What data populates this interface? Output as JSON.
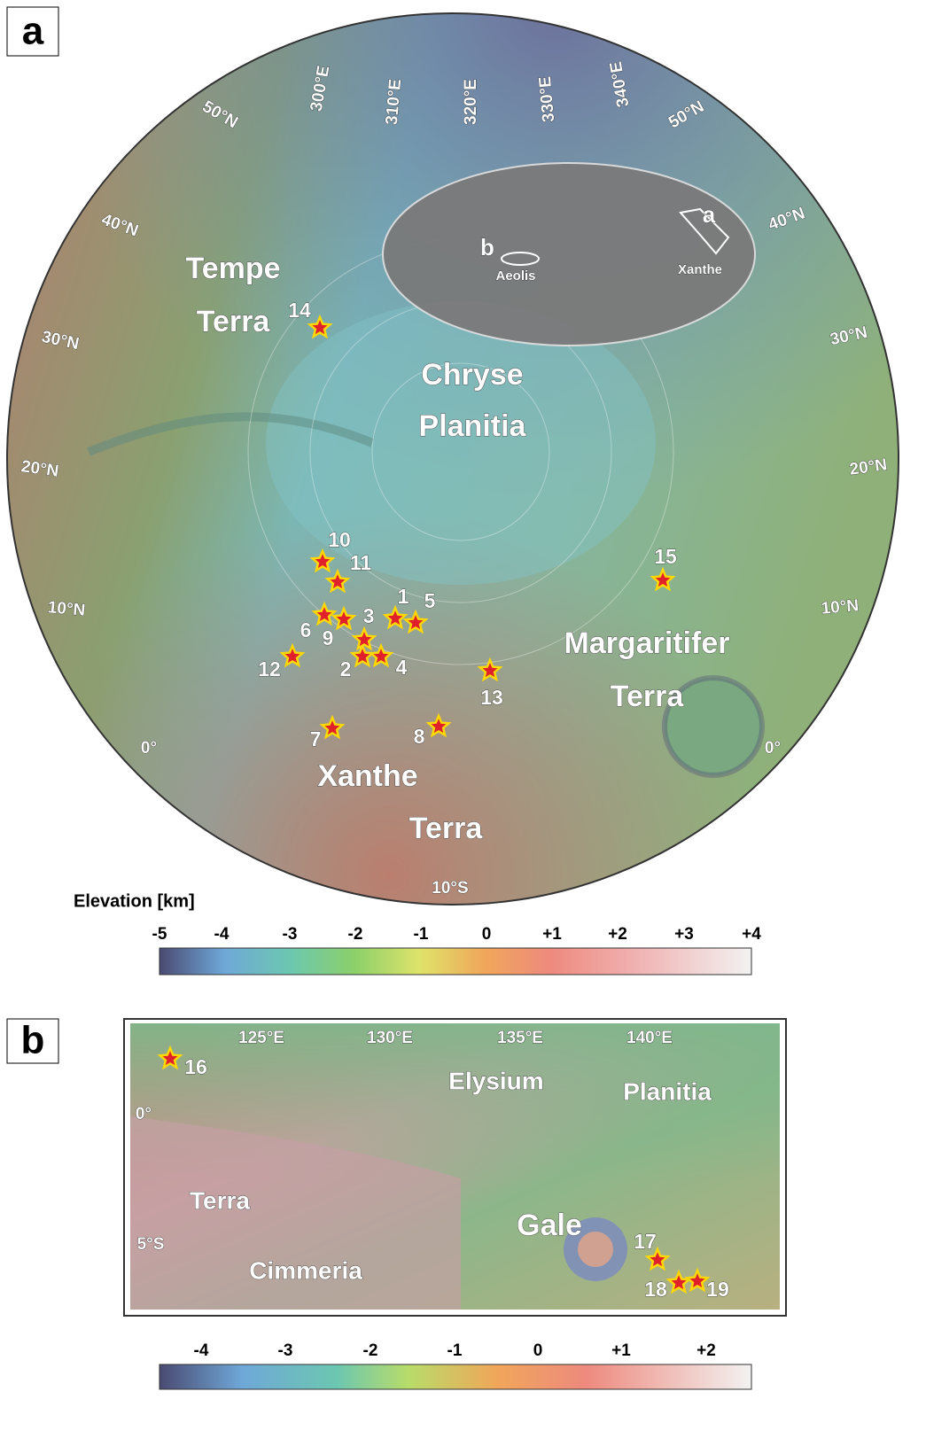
{
  "panel_a": {
    "label": "a",
    "lat_left": [
      "50°N",
      "40°N",
      "30°N",
      "20°N",
      "10°N",
      "0°"
    ],
    "lat_right": [
      "50°N",
      "40°N",
      "30°N",
      "20°N",
      "10°N",
      "0°"
    ],
    "lon": [
      "300°E",
      "310°E",
      "320°E",
      "330°E",
      "340°E"
    ],
    "south": "10°S",
    "regions": [
      "Tempe",
      "Terra",
      "Chryse",
      "Planitia",
      "Margaritifer",
      "Terra",
      "Xanthe",
      "Terra"
    ],
    "sites": [
      "1",
      "2",
      "3",
      "4",
      "5",
      "6",
      "7",
      "8",
      "9",
      "10",
      "11",
      "12",
      "13",
      "14",
      "15"
    ],
    "inset": {
      "a": "a",
      "b": "b",
      "aeolis": "Aeolis",
      "xanthe": "Xanthe"
    },
    "colorbar": {
      "title": "Elevation [km]",
      "ticks": [
        "-5",
        "-4",
        "-3",
        "-2",
        "-1",
        "0",
        "+1",
        "+2",
        "+3",
        "+4"
      ]
    }
  },
  "panel_b": {
    "label": "b",
    "lon": [
      "125°E",
      "130°E",
      "135°E",
      "140°E"
    ],
    "lat": [
      "0°",
      "5°S"
    ],
    "regions": [
      "Elysium",
      "Planitia",
      "Terra",
      "Cimmeria",
      "Gale"
    ],
    "sites": [
      "16",
      "17",
      "18",
      "19"
    ],
    "colorbar": {
      "ticks": [
        "-4",
        "-3",
        "-2",
        "-1",
        "0",
        "+1",
        "+2"
      ]
    }
  }
}
